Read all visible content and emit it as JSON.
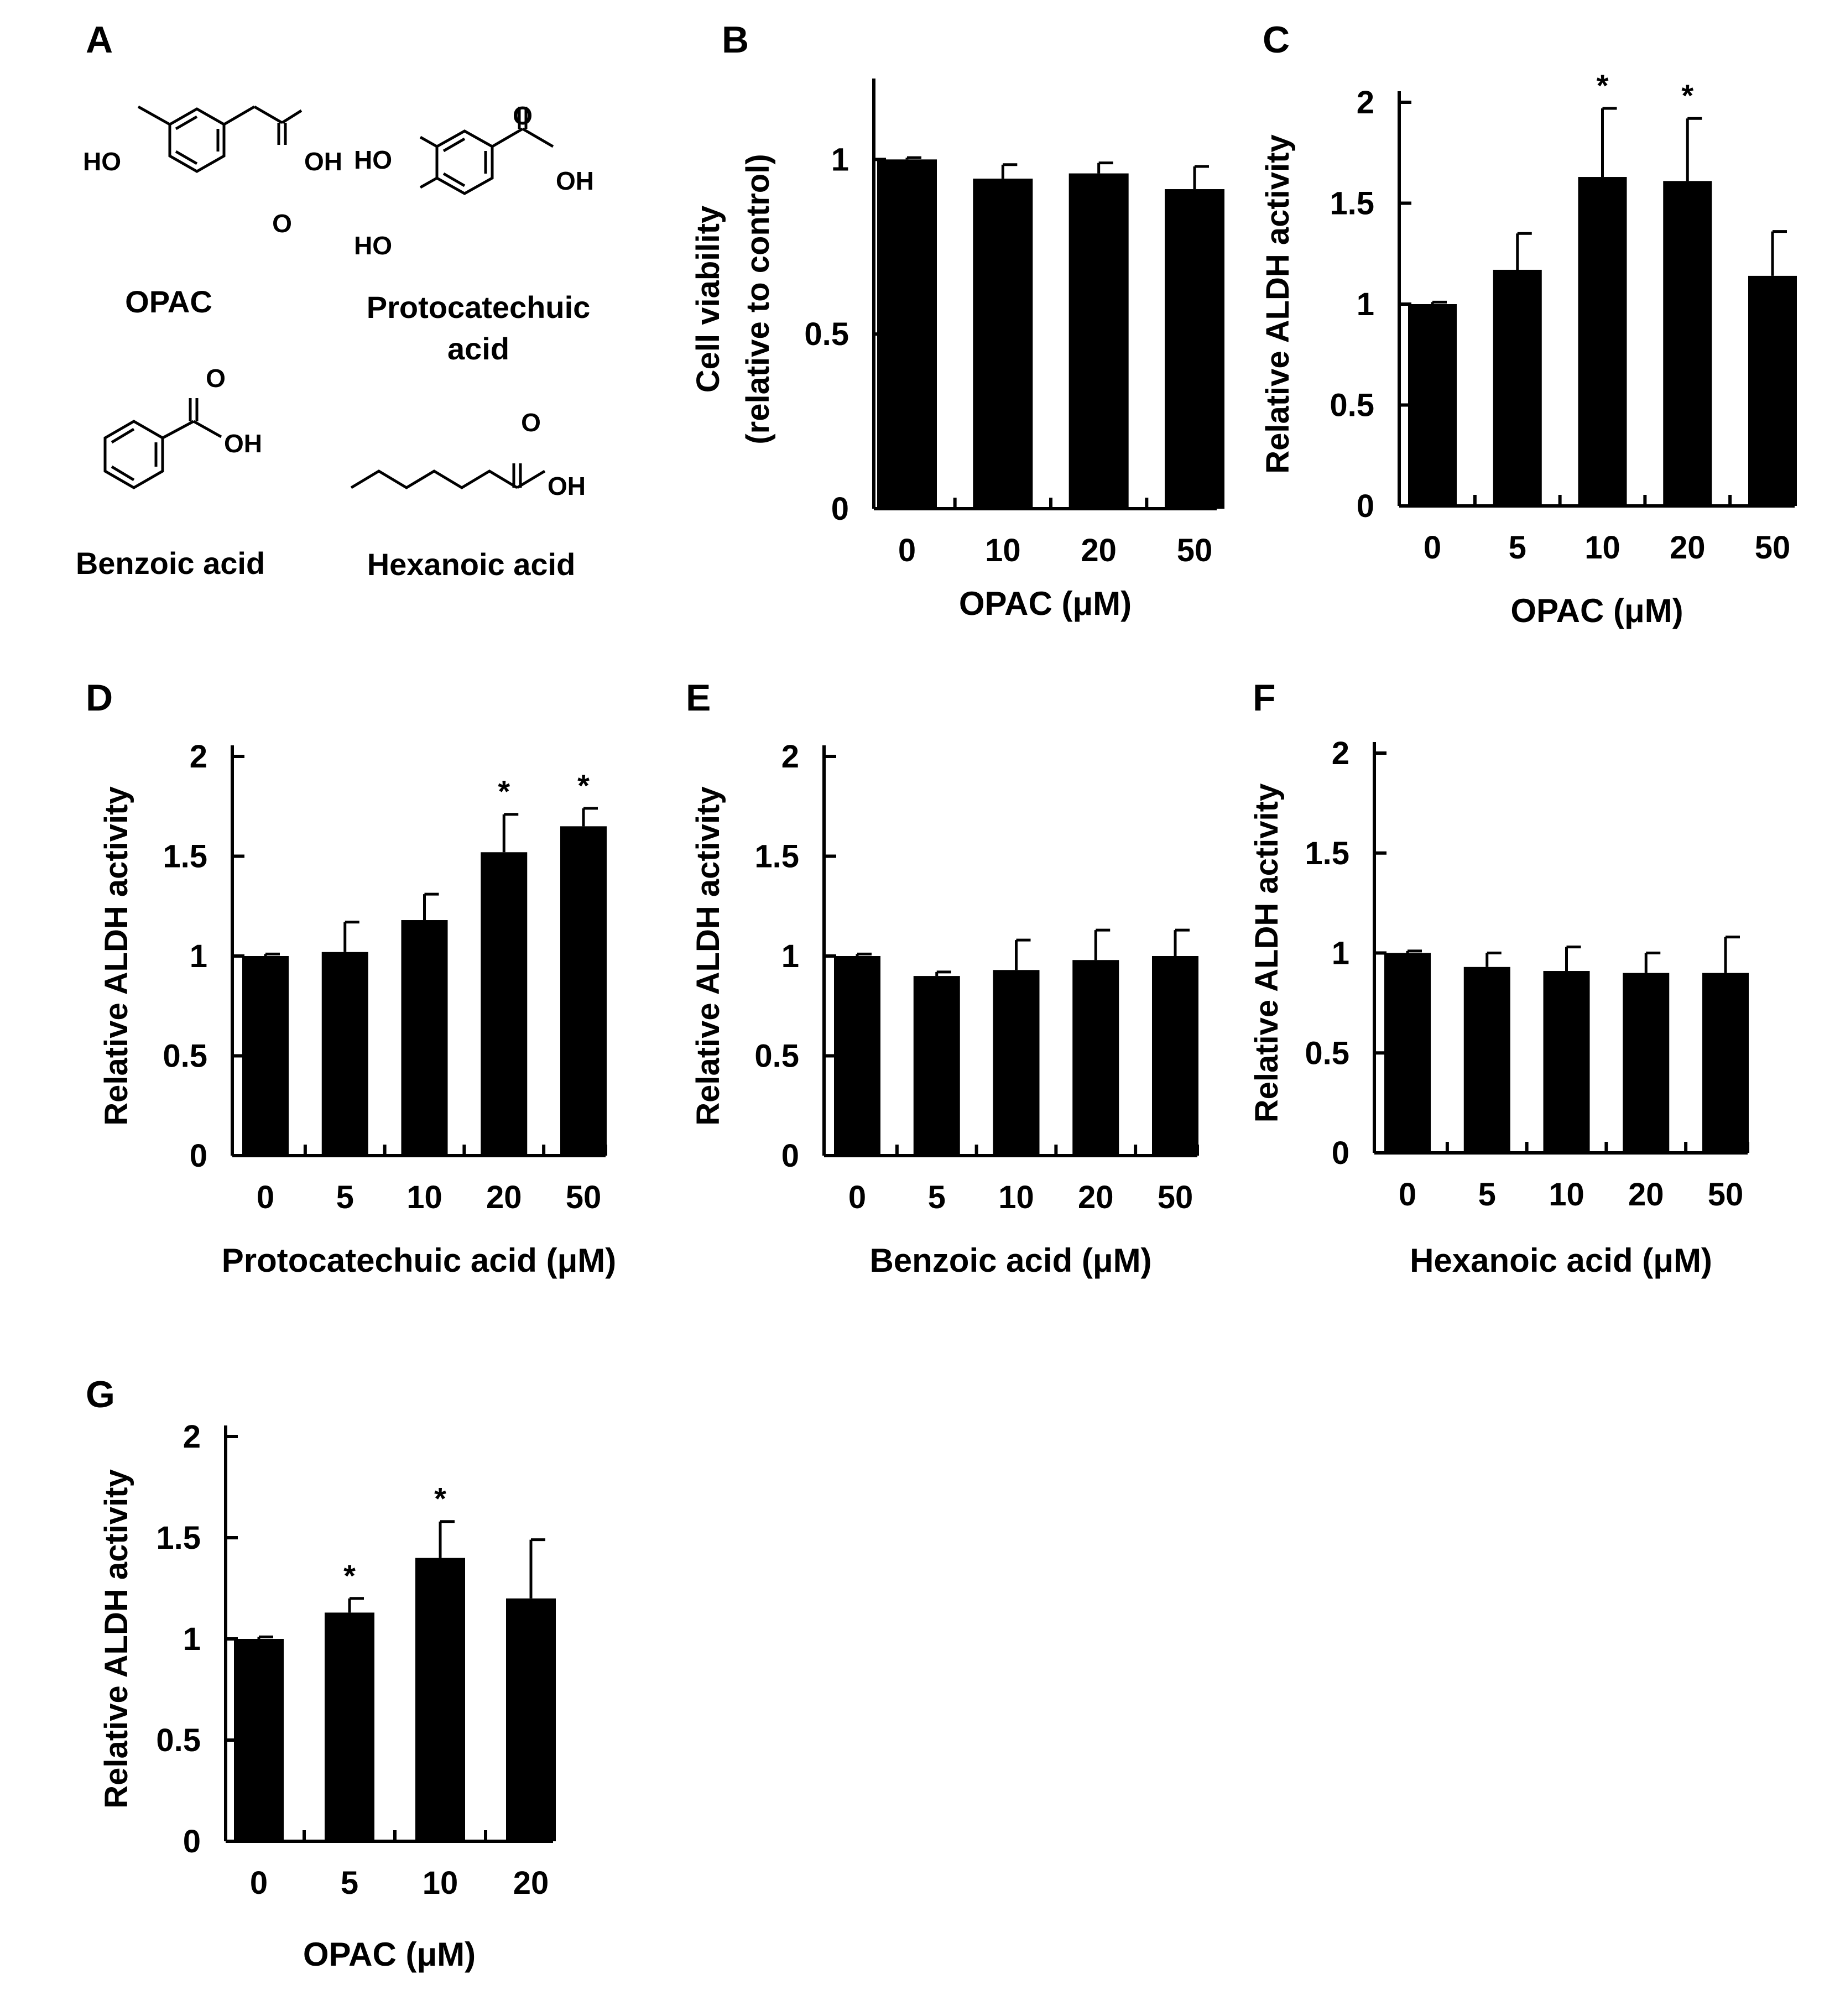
{
  "figure": {
    "panel_letters": [
      "A",
      "B",
      "C",
      "D",
      "E",
      "F",
      "G"
    ]
  },
  "structures": {
    "opac": {
      "name": "OPAC",
      "atoms": {
        "ho": "HO",
        "oh": "OH",
        "o": "O"
      }
    },
    "protocatechuic": {
      "name_line1": "Protocatechuic",
      "name_line2": "acid",
      "atoms": {
        "ho1": "HO",
        "ho2": "HO",
        "o": "O",
        "oh": "OH"
      }
    },
    "benzoic": {
      "name": "Benzoic acid",
      "atoms": {
        "o": "O",
        "oh": "OH"
      }
    },
    "hexanoic": {
      "name": "Hexanoic acid",
      "atoms": {
        "o": "O",
        "oh": "OH"
      }
    }
  },
  "chart_data": [
    {
      "panel": "B",
      "type": "bar",
      "categories": [
        "0",
        "10",
        "20",
        "50"
      ],
      "values": [
        1.0,
        0.945,
        0.96,
        0.915
      ],
      "errors": [
        0.005,
        0.04,
        0.03,
        0.065
      ],
      "significant": [
        false,
        false,
        false,
        false
      ],
      "ylim": [
        0,
        1.2
      ],
      "yticks": [
        "0",
        "0.5",
        "1"
      ],
      "ytick_values": [
        0,
        0.5,
        1
      ],
      "ylabel": [
        "Cell viability",
        "(relative to control)"
      ],
      "xlabel": "OPAC (μM)",
      "star": "*",
      "grid": false,
      "legend": "none"
    },
    {
      "panel": "C",
      "type": "bar",
      "categories": [
        "0",
        "5",
        "10",
        "20",
        "50"
      ],
      "values": [
        1.0,
        1.17,
        1.63,
        1.61,
        1.14
      ],
      "errors": [
        0.01,
        0.18,
        0.34,
        0.31,
        0.22
      ],
      "significant": [
        false,
        false,
        true,
        true,
        false
      ],
      "ylim": [
        0,
        2
      ],
      "yticks": [
        "0",
        "0.5",
        "1",
        "1.5",
        "2"
      ],
      "ytick_values": [
        0,
        0.5,
        1,
        1.5,
        2
      ],
      "ylabel": [
        "Relative ALDH activity"
      ],
      "xlabel": "OPAC (μM)",
      "star": "*",
      "grid": false,
      "legend": "none"
    },
    {
      "panel": "D",
      "type": "bar",
      "categories": [
        "0",
        "5",
        "10",
        "20",
        "50"
      ],
      "values": [
        1.0,
        1.02,
        1.18,
        1.52,
        1.65
      ],
      "errors": [
        0.01,
        0.15,
        0.13,
        0.19,
        0.09
      ],
      "significant": [
        false,
        false,
        false,
        true,
        true
      ],
      "ylim": [
        0,
        2
      ],
      "yticks": [
        "0",
        "0.5",
        "1",
        "1.5",
        "2"
      ],
      "ytick_values": [
        0,
        0.5,
        1,
        1.5,
        2
      ],
      "ylabel": [
        "Relative ALDH activity"
      ],
      "xlabel": "Protocatechuic acid (μM)",
      "star": "*",
      "grid": false,
      "legend": "none"
    },
    {
      "panel": "E",
      "type": "bar",
      "categories": [
        "0",
        "5",
        "10",
        "20",
        "50"
      ],
      "values": [
        1.0,
        0.9,
        0.93,
        0.98,
        1.0
      ],
      "errors": [
        0.01,
        0.02,
        0.15,
        0.15,
        0.13
      ],
      "significant": [
        false,
        false,
        false,
        false,
        false
      ],
      "ylim": [
        0,
        2
      ],
      "yticks": [
        "0",
        "0.5",
        "1",
        "1.5",
        "2"
      ],
      "ytick_values": [
        0,
        0.5,
        1,
        1.5,
        2
      ],
      "ylabel": [
        "Relative ALDH activity"
      ],
      "xlabel": "Benzoic acid (μM)",
      "star": "*",
      "grid": false,
      "legend": "none"
    },
    {
      "panel": "F",
      "type": "bar",
      "categories": [
        "0",
        "5",
        "10",
        "20",
        "50"
      ],
      "values": [
        1.0,
        0.93,
        0.91,
        0.9,
        0.9
      ],
      "errors": [
        0.01,
        0.07,
        0.12,
        0.1,
        0.18
      ],
      "significant": [
        false,
        false,
        false,
        false,
        false
      ],
      "ylim": [
        0,
        2
      ],
      "yticks": [
        "0",
        "0.5",
        "1",
        "1.5",
        "2"
      ],
      "ytick_values": [
        0,
        0.5,
        1,
        1.5,
        2
      ],
      "ylabel": [
        "Relative ALDH activity"
      ],
      "xlabel": "Hexanoic acid (μM)",
      "star": "*",
      "grid": false,
      "legend": "none"
    },
    {
      "panel": "G",
      "type": "bar",
      "categories": [
        "0",
        "5",
        "10",
        "20"
      ],
      "values": [
        1.0,
        1.13,
        1.4,
        1.2
      ],
      "errors": [
        0.01,
        0.07,
        0.18,
        0.29
      ],
      "significant": [
        false,
        true,
        true,
        false
      ],
      "ylim": [
        0,
        2
      ],
      "yticks": [
        "0",
        "0.5",
        "1",
        "1.5",
        "2"
      ],
      "ytick_values": [
        0,
        0.5,
        1,
        1.5,
        2
      ],
      "ylabel": [
        "Relative ALDH activity"
      ],
      "xlabel": "OPAC (μM)",
      "star": "*",
      "grid": false,
      "legend": "none"
    }
  ]
}
